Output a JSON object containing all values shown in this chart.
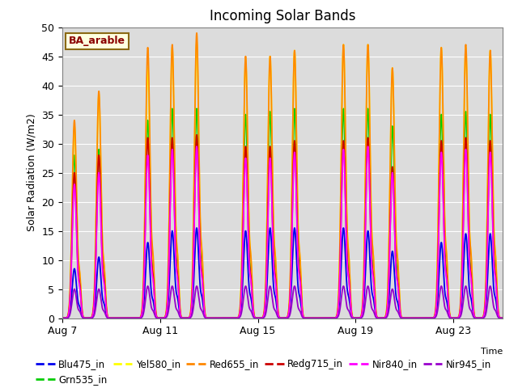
{
  "title": "Incoming Solar Bands",
  "ylabel": "Solar Radiation (W/m2)",
  "ylim": [
    0,
    50
  ],
  "annotation": "BA_arable",
  "background_color": "#dcdcdc",
  "series_names": [
    "Blu475_in",
    "Grn535_in",
    "Yel580_in",
    "Red655_in",
    "Redg715_in",
    "Nir840_in",
    "Nir945_in"
  ],
  "colors": {
    "Blu475_in": "#0000ee",
    "Grn535_in": "#00cc00",
    "Yel580_in": "#ffff00",
    "Red655_in": "#ff8800",
    "Redg715_in": "#cc0000",
    "Nir840_in": "#ff00ff",
    "Nir945_in": "#9900cc"
  },
  "xtick_labels": [
    "Aug 7",
    "Aug 11",
    "Aug 15",
    "Aug 19",
    "Aug 23"
  ],
  "xtick_days": [
    0,
    4,
    8,
    12,
    16
  ],
  "ytick_values": [
    0,
    5,
    10,
    15,
    20,
    25,
    30,
    35,
    40,
    45,
    50
  ],
  "n_days": 18,
  "peak_heights": {
    "Blu475_in": [
      8.5,
      10.5,
      0,
      13,
      15,
      15.5,
      0,
      15,
      15.5,
      15.5,
      0,
      15.5,
      15,
      11.5,
      0,
      13,
      14.5,
      14.5
    ],
    "Grn535_in": [
      28,
      29,
      0,
      34,
      36,
      36,
      0,
      35,
      35.5,
      36,
      0,
      36,
      36,
      33,
      0,
      35,
      35.5,
      35
    ],
    "Yel580_in": [
      33,
      38.5,
      0,
      43,
      46.5,
      47.5,
      0,
      44.5,
      45,
      46,
      0,
      47,
      47,
      43,
      0,
      46.5,
      46.5,
      46
    ],
    "Red655_in": [
      34,
      39,
      0,
      46.5,
      47,
      49,
      0,
      45,
      45,
      46,
      0,
      47,
      47,
      43,
      0,
      46.5,
      47,
      46
    ],
    "Redg715_in": [
      25,
      28,
      0,
      31,
      31,
      31.5,
      0,
      29.5,
      29.5,
      30.5,
      0,
      30.5,
      31,
      26,
      0,
      30.5,
      31,
      30.5
    ],
    "Nir840_in": [
      23,
      25,
      0,
      28,
      29,
      29.5,
      0,
      27.5,
      27.5,
      28.5,
      0,
      29,
      29.5,
      25,
      0,
      28.5,
      29,
      28.5
    ],
    "Nir945_in": [
      5,
      5,
      0,
      5.5,
      5.5,
      5.5,
      0,
      5.5,
      5.5,
      5.5,
      0,
      5.5,
      5.5,
      5,
      0,
      5.5,
      5.5,
      5.5
    ]
  }
}
